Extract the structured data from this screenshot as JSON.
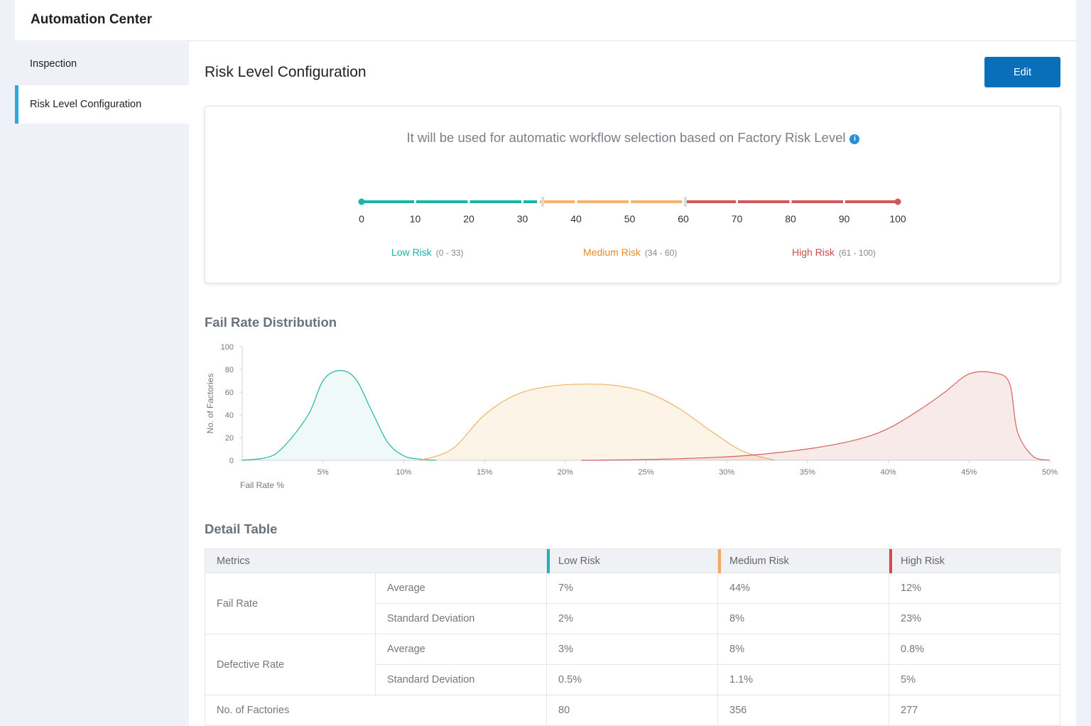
{
  "app": {
    "title": "Automation Center"
  },
  "sidebar": {
    "items": [
      {
        "label": "Inspection"
      },
      {
        "label": "Risk Level Configuration"
      }
    ]
  },
  "page": {
    "title": "Risk Level Configuration",
    "edit_label": "Edit"
  },
  "config": {
    "description": "It will be used for automatic workflow selection based on Factory Risk Level",
    "info_icon": "info-icon",
    "ticks": [
      "0",
      "10",
      "20",
      "30",
      "40",
      "50",
      "60",
      "70",
      "80",
      "90",
      "100"
    ],
    "levels": [
      {
        "name": "Low Risk",
        "range": "(0 - 33)",
        "color": "#17b3a7",
        "from": 0,
        "to": 33
      },
      {
        "name": "Medium Risk",
        "range": "(34 - 60)",
        "color": "#e88b25",
        "from": 34,
        "to": 60
      },
      {
        "name": "High Risk",
        "range": "(61 - 100)",
        "color": "#cf4a4a",
        "from": 61,
        "to": 100
      }
    ]
  },
  "distribution": {
    "title": "Fail Rate Distribution",
    "colors": {
      "low": "#22b4a6",
      "medium": "#f0b468",
      "high": "#d4605f"
    }
  },
  "chart_data": {
    "type": "area",
    "xlabel": "Fail Rate %",
    "ylabel": "No. of Factories",
    "ylim": [
      0,
      100
    ],
    "xlim": [
      0,
      50
    ],
    "yticks": [
      "0",
      "20",
      "40",
      "60",
      "80",
      "100"
    ],
    "xticks": [
      "5%",
      "10%",
      "15%",
      "20%",
      "25%",
      "30%",
      "35%",
      "40%",
      "45%",
      "50%"
    ],
    "grid": false,
    "series": [
      {
        "name": "Low Risk",
        "x": [
          0,
          2,
          4,
          5,
          6,
          7,
          8,
          9,
          10,
          11,
          12
        ],
        "values": [
          0,
          5,
          38,
          70,
          79,
          72,
          44,
          16,
          4,
          1,
          0
        ]
      },
      {
        "name": "Medium Risk",
        "x": [
          11,
          13,
          15,
          17,
          19,
          21,
          23,
          25,
          27,
          29,
          31,
          33
        ],
        "values": [
          0,
          10,
          40,
          58,
          65,
          67,
          66,
          60,
          46,
          26,
          8,
          0
        ]
      },
      {
        "name": "High Risk",
        "x": [
          21,
          26,
          31,
          35,
          38,
          40,
          42,
          43.5,
          45,
          46.5,
          47.5,
          48,
          49,
          50
        ],
        "values": [
          0,
          1,
          4,
          10,
          18,
          28,
          45,
          60,
          76,
          77,
          68,
          25,
          3,
          0
        ]
      }
    ]
  },
  "table": {
    "title": "Detail Table",
    "headers": {
      "metrics": "Metrics",
      "low": "Low Risk",
      "medium": "Medium Risk",
      "high": "High Risk"
    },
    "header_colors": {
      "low": "#21b1b8",
      "medium": "#f0a85c",
      "high": "#d44848"
    },
    "fail_rate": {
      "label": "Fail Rate",
      "avg_label": "Average",
      "avg": [
        "7%",
        "44%",
        "12%"
      ],
      "std_label": "Standard Deviation",
      "std": [
        "2%",
        "8%",
        "23%"
      ]
    },
    "defective_rate": {
      "label": "Defective Rate",
      "avg_label": "Average",
      "avg": [
        "3%",
        "8%",
        "0.8%"
      ],
      "std_label": "Standard Deviation",
      "std": [
        "0.5%",
        "1.1%",
        "5%"
      ]
    },
    "factories": {
      "label": "No. of Factories",
      "values": [
        "80",
        "356",
        "277"
      ]
    }
  }
}
